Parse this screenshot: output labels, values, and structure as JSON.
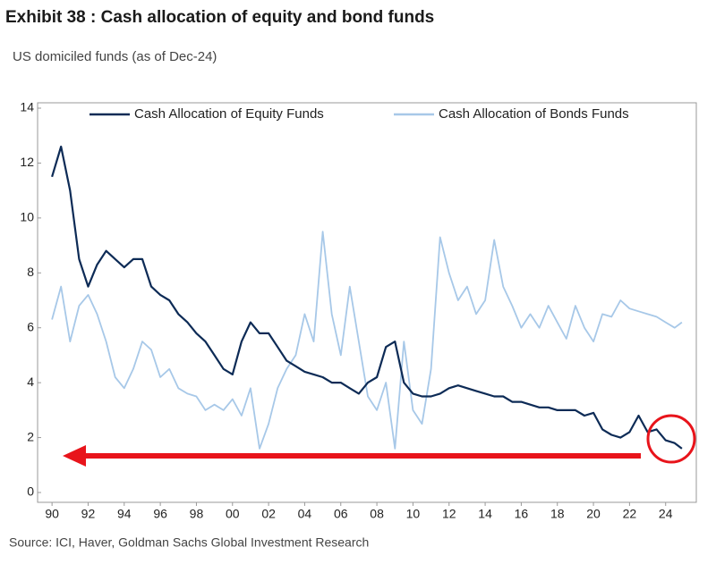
{
  "chart_data": {
    "type": "line",
    "title": "Exhibit 38 : Cash allocation of equity and bond funds",
    "subtitle": "US domiciled funds (as of Dec-24)",
    "source": "Source: ICI, Haver, Goldman Sachs Global Investment Research",
    "x": [
      1990,
      1990.5,
      1991,
      1991.5,
      1992,
      1992.5,
      1993,
      1993.5,
      1994,
      1994.5,
      1995,
      1995.5,
      1996,
      1996.5,
      1997,
      1997.5,
      1998,
      1998.5,
      1999,
      1999.5,
      2000,
      2000.5,
      2001,
      2001.5,
      2002,
      2002.5,
      2003,
      2003.5,
      2004,
      2004.5,
      2005,
      2005.5,
      2006,
      2006.5,
      2007,
      2007.5,
      2008,
      2008.5,
      2009,
      2009.5,
      2010,
      2010.5,
      2011,
      2011.5,
      2012,
      2012.5,
      2013,
      2013.5,
      2014,
      2014.5,
      2015,
      2015.5,
      2016,
      2016.5,
      2017,
      2017.5,
      2018,
      2018.5,
      2019,
      2019.5,
      2020,
      2020.5,
      2021,
      2021.5,
      2022,
      2022.5,
      2023,
      2023.5,
      2024,
      2024.5,
      2024.9
    ],
    "series": [
      {
        "name": "Cash Allocation of Equity Funds",
        "color": "#0d2b56",
        "values": [
          11.5,
          12.6,
          11.0,
          8.5,
          7.5,
          8.3,
          8.8,
          8.5,
          8.2,
          8.5,
          8.5,
          7.5,
          7.2,
          7.0,
          6.5,
          6.2,
          5.8,
          5.5,
          5.0,
          4.5,
          4.3,
          5.5,
          6.2,
          5.8,
          5.8,
          5.3,
          4.8,
          4.6,
          4.4,
          4.3,
          4.2,
          4.0,
          4.0,
          3.8,
          3.6,
          4.0,
          4.2,
          5.3,
          5.5,
          4.0,
          3.6,
          3.5,
          3.5,
          3.6,
          3.8,
          3.9,
          3.8,
          3.7,
          3.6,
          3.5,
          3.5,
          3.3,
          3.3,
          3.2,
          3.1,
          3.1,
          3.0,
          3.0,
          3.0,
          2.8,
          2.9,
          2.3,
          2.1,
          2.0,
          2.2,
          2.8,
          2.2,
          2.3,
          1.9,
          1.8,
          1.6
        ]
      },
      {
        "name": "Cash Allocation of Bonds Funds",
        "color": "#a7c8e8",
        "values": [
          6.3,
          7.5,
          5.5,
          6.8,
          7.2,
          6.5,
          5.5,
          4.2,
          3.8,
          4.5,
          5.5,
          5.2,
          4.2,
          4.5,
          3.8,
          3.6,
          3.5,
          3.0,
          3.2,
          3.0,
          3.4,
          2.8,
          3.8,
          1.6,
          2.5,
          3.8,
          4.5,
          5.0,
          6.5,
          5.5,
          9.5,
          6.5,
          5.0,
          7.5,
          5.5,
          3.5,
          3.0,
          4.0,
          1.6,
          5.5,
          3.0,
          2.5,
          4.5,
          9.3,
          8.0,
          7.0,
          7.5,
          6.5,
          7.0,
          9.2,
          7.5,
          6.8,
          6.0,
          6.5,
          6.0,
          6.8,
          6.2,
          5.6,
          6.8,
          6.0,
          5.5,
          6.5,
          6.4,
          7.0,
          6.7,
          6.6,
          6.5,
          6.4,
          6.2,
          6.0,
          6.2
        ]
      }
    ],
    "xlim": [
      1989.2,
      2025.7
    ],
    "xticks": [
      {
        "value": 1990,
        "label": "90"
      },
      {
        "value": 1992,
        "label": "92"
      },
      {
        "value": 1994,
        "label": "94"
      },
      {
        "value": 1996,
        "label": "96"
      },
      {
        "value": 1998,
        "label": "98"
      },
      {
        "value": 2000,
        "label": "00"
      },
      {
        "value": 2002,
        "label": "02"
      },
      {
        "value": 2004,
        "label": "04"
      },
      {
        "value": 2006,
        "label": "06"
      },
      {
        "value": 2008,
        "label": "08"
      },
      {
        "value": 2010,
        "label": "10"
      },
      {
        "value": 2012,
        "label": "12"
      },
      {
        "value": 2014,
        "label": "14"
      },
      {
        "value": 2016,
        "label": "16"
      },
      {
        "value": 2018,
        "label": "18"
      },
      {
        "value": 2020,
        "label": "20"
      },
      {
        "value": 2022,
        "label": "22"
      },
      {
        "value": 2024,
        "label": "24"
      }
    ],
    "ylim": [
      0,
      14
    ],
    "yticks": [
      0,
      2,
      4,
      6,
      8,
      10,
      12,
      14
    ],
    "grid": false,
    "legend": "top"
  }
}
